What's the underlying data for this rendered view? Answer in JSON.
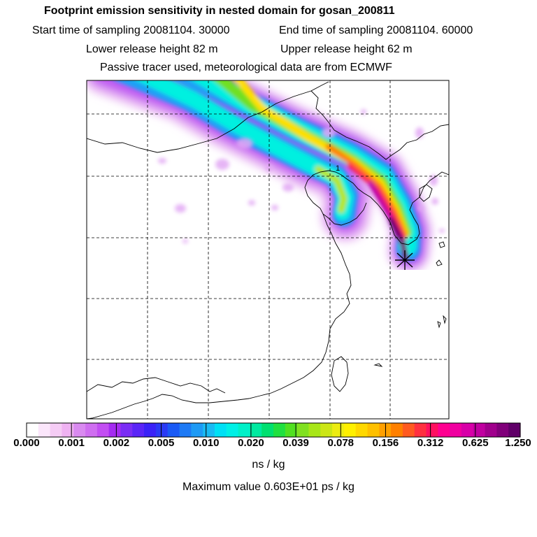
{
  "header": {
    "title": "Footprint emission sensitivity in nested domain for gosan_200811",
    "start_sampling": "Start time of sampling 20081104. 30000",
    "end_sampling": "End time of sampling 20081104. 60000",
    "lower_release": "Lower release height   82 m",
    "upper_release": "Upper release height   62 m",
    "tracer_note": "Passive tracer used, meteorological data are from ECMWF"
  },
  "colorbar": {
    "colors": [
      "#ffffff",
      "#fbe6fb",
      "#f5ccf5",
      "#efb2f2",
      "#d98af0",
      "#cf6ef0",
      "#c24ef2",
      "#a52bf2",
      "#7a2df5",
      "#5a25f7",
      "#3a22f7",
      "#2a3af5",
      "#1a5af5",
      "#1e7af5",
      "#1e9af5",
      "#1abaf3",
      "#00e0f5",
      "#00f0e6",
      "#00f0c8",
      "#00eaa0",
      "#00e070",
      "#20e040",
      "#50e020",
      "#80e020",
      "#a8e618",
      "#cce616",
      "#ecec12",
      "#fff000",
      "#ffd800",
      "#ffc000",
      "#ffa000",
      "#ff8000",
      "#ff5a20",
      "#ff3040",
      "#ff1060",
      "#ff0090",
      "#f000a0",
      "#d800a8",
      "#c000a0",
      "#a0008c",
      "#80007a",
      "#600068"
    ],
    "tick_labels": [
      "0.000",
      "0.001",
      "0.002",
      "0.005",
      "0.010",
      "0.020",
      "0.039",
      "0.078",
      "0.156",
      "0.312",
      "0.625",
      "1.250"
    ],
    "unit": "ns / kg"
  },
  "max_value_text": "Maximum value  0.603E+01 ps / kg",
  "receptor": {
    "name": "gosan",
    "symbol": "star"
  }
}
